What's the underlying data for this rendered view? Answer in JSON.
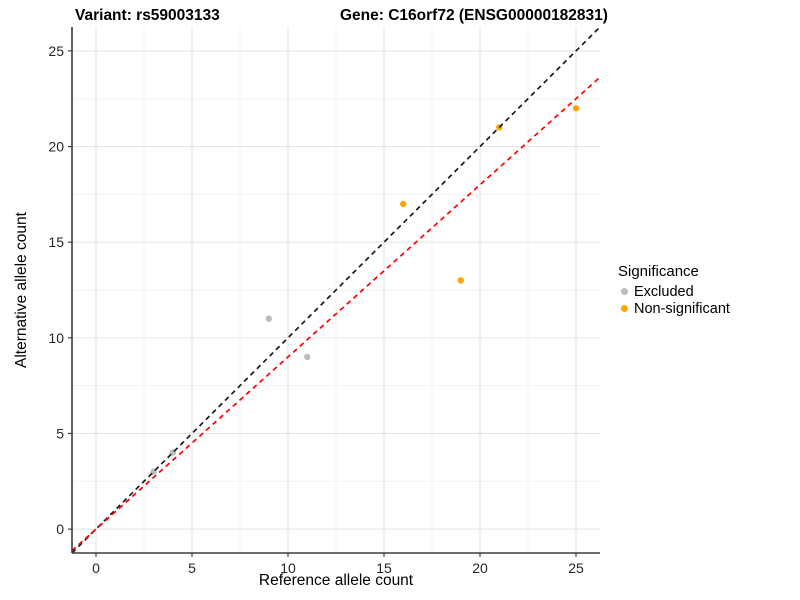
{
  "title": {
    "variant": "Variant: rs59003133",
    "gene": "Gene: C16orf72 (ENSG00000182831)"
  },
  "chart_data": {
    "type": "scatter",
    "xlabel": "Reference allele count",
    "ylabel": "Alternative allele count",
    "xlim": [
      -1.25,
      26.25
    ],
    "ylim": [
      -1.25,
      26.25
    ],
    "x_ticks": [
      0,
      5,
      10,
      15,
      20,
      25
    ],
    "y_ticks": [
      0,
      5,
      10,
      15,
      20,
      25
    ],
    "x_minor_ticks": [
      2.5,
      7.5,
      12.5,
      17.5,
      22.5
    ],
    "y_minor_ticks": [
      2.5,
      7.5,
      12.5,
      17.5,
      22.5
    ],
    "grid": "major+minor on white",
    "legend": {
      "title": "Significance",
      "position": "right"
    },
    "series": [
      {
        "name": "Excluded",
        "color": "#BDBDBD",
        "points": [
          [
            3,
            3
          ],
          [
            4,
            4
          ],
          [
            9,
            11
          ],
          [
            11,
            9
          ]
        ]
      },
      {
        "name": "Non-significant",
        "color": "#FFA500",
        "points": [
          [
            16,
            17
          ],
          [
            19,
            13
          ],
          [
            21,
            21
          ],
          [
            25,
            22
          ]
        ]
      }
    ],
    "lines": [
      {
        "name": "identity-line",
        "style": "dashed",
        "color": "#1A1A1A",
        "slope": 1.0,
        "intercept": 0
      },
      {
        "name": "fit-line",
        "style": "dashed",
        "color": "#FF0000",
        "slope": 0.9,
        "intercept": 0
      }
    ],
    "style": {
      "major_grid_color": "#E3E3E3",
      "minor_grid_color": "#EDEDED",
      "axis_line_color": "#3C3C3C",
      "tick_label_color": "#262626",
      "point_radius": 3.2
    }
  }
}
